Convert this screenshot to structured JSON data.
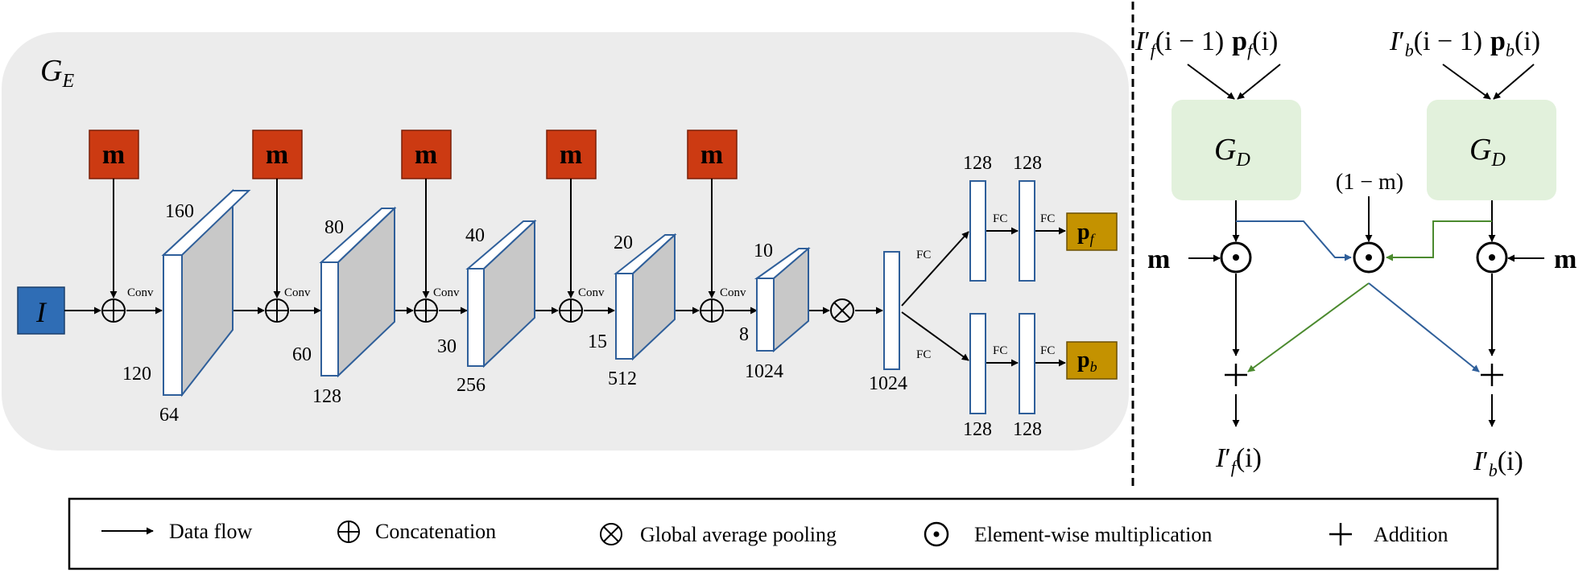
{
  "encoder": {
    "title": "G",
    "title_sub": "E",
    "input_label": "I",
    "mask_label": "m",
    "conv_label": "Conv",
    "fc_label": "FC",
    "blocks": [
      {
        "top": "160",
        "side": "120",
        "bottom": "64"
      },
      {
        "top": "80",
        "side": "60",
        "bottom": "128"
      },
      {
        "top": "40",
        "side": "30",
        "bottom": "256"
      },
      {
        "top": "20",
        "side": "15",
        "bottom": "512"
      },
      {
        "top": "10",
        "side": "8",
        "bottom": "1024"
      }
    ],
    "pooled_vector_label": "1024",
    "fc_dims": {
      "upper_first": "128",
      "upper_second": "128",
      "lower_first": "128",
      "lower_second": "128"
    },
    "outputs": {
      "upper_base": "p",
      "upper_sub": "f",
      "lower_base": "p",
      "lower_sub": "b"
    },
    "colors": {
      "panel": "#ececec",
      "mask": "#cc3a12",
      "input": "#2f6db5",
      "output": "#c49200",
      "block_face": "#c8c8c8",
      "block_edge": "#2f5f9a"
    }
  },
  "decoder": {
    "left_input": {
      "base": "I",
      "prime": "′",
      "sub": "f",
      "tail": "(i − 1)",
      "p_base": "p",
      "p_sub": "f",
      "p_tail": "(i)"
    },
    "right_input": {
      "base": "I",
      "prime": "′",
      "sub": "b",
      "tail": "(i − 1)",
      "p_base": "p",
      "p_sub": "b",
      "p_tail": "(i)"
    },
    "decoder_title": "G",
    "decoder_sub": "D",
    "one_minus_m": "(1 − m)",
    "mask_label": "m",
    "left_output": {
      "base": "I",
      "prime": "′",
      "sub": "f",
      "tail": "(i)"
    },
    "right_output": {
      "base": "I",
      "prime": "′",
      "sub": "b",
      "tail": "(i)"
    },
    "colors": {
      "decoder_box": "#e2f1dc",
      "blue_path": "#2f5f9a",
      "green_path": "#4b8a2e"
    }
  },
  "legend": {
    "data_flow": "Data flow",
    "concatenation": "Concatenation",
    "pooling": "Global average pooling",
    "multiplication": "Element-wise multiplication",
    "addition": "Addition"
  }
}
